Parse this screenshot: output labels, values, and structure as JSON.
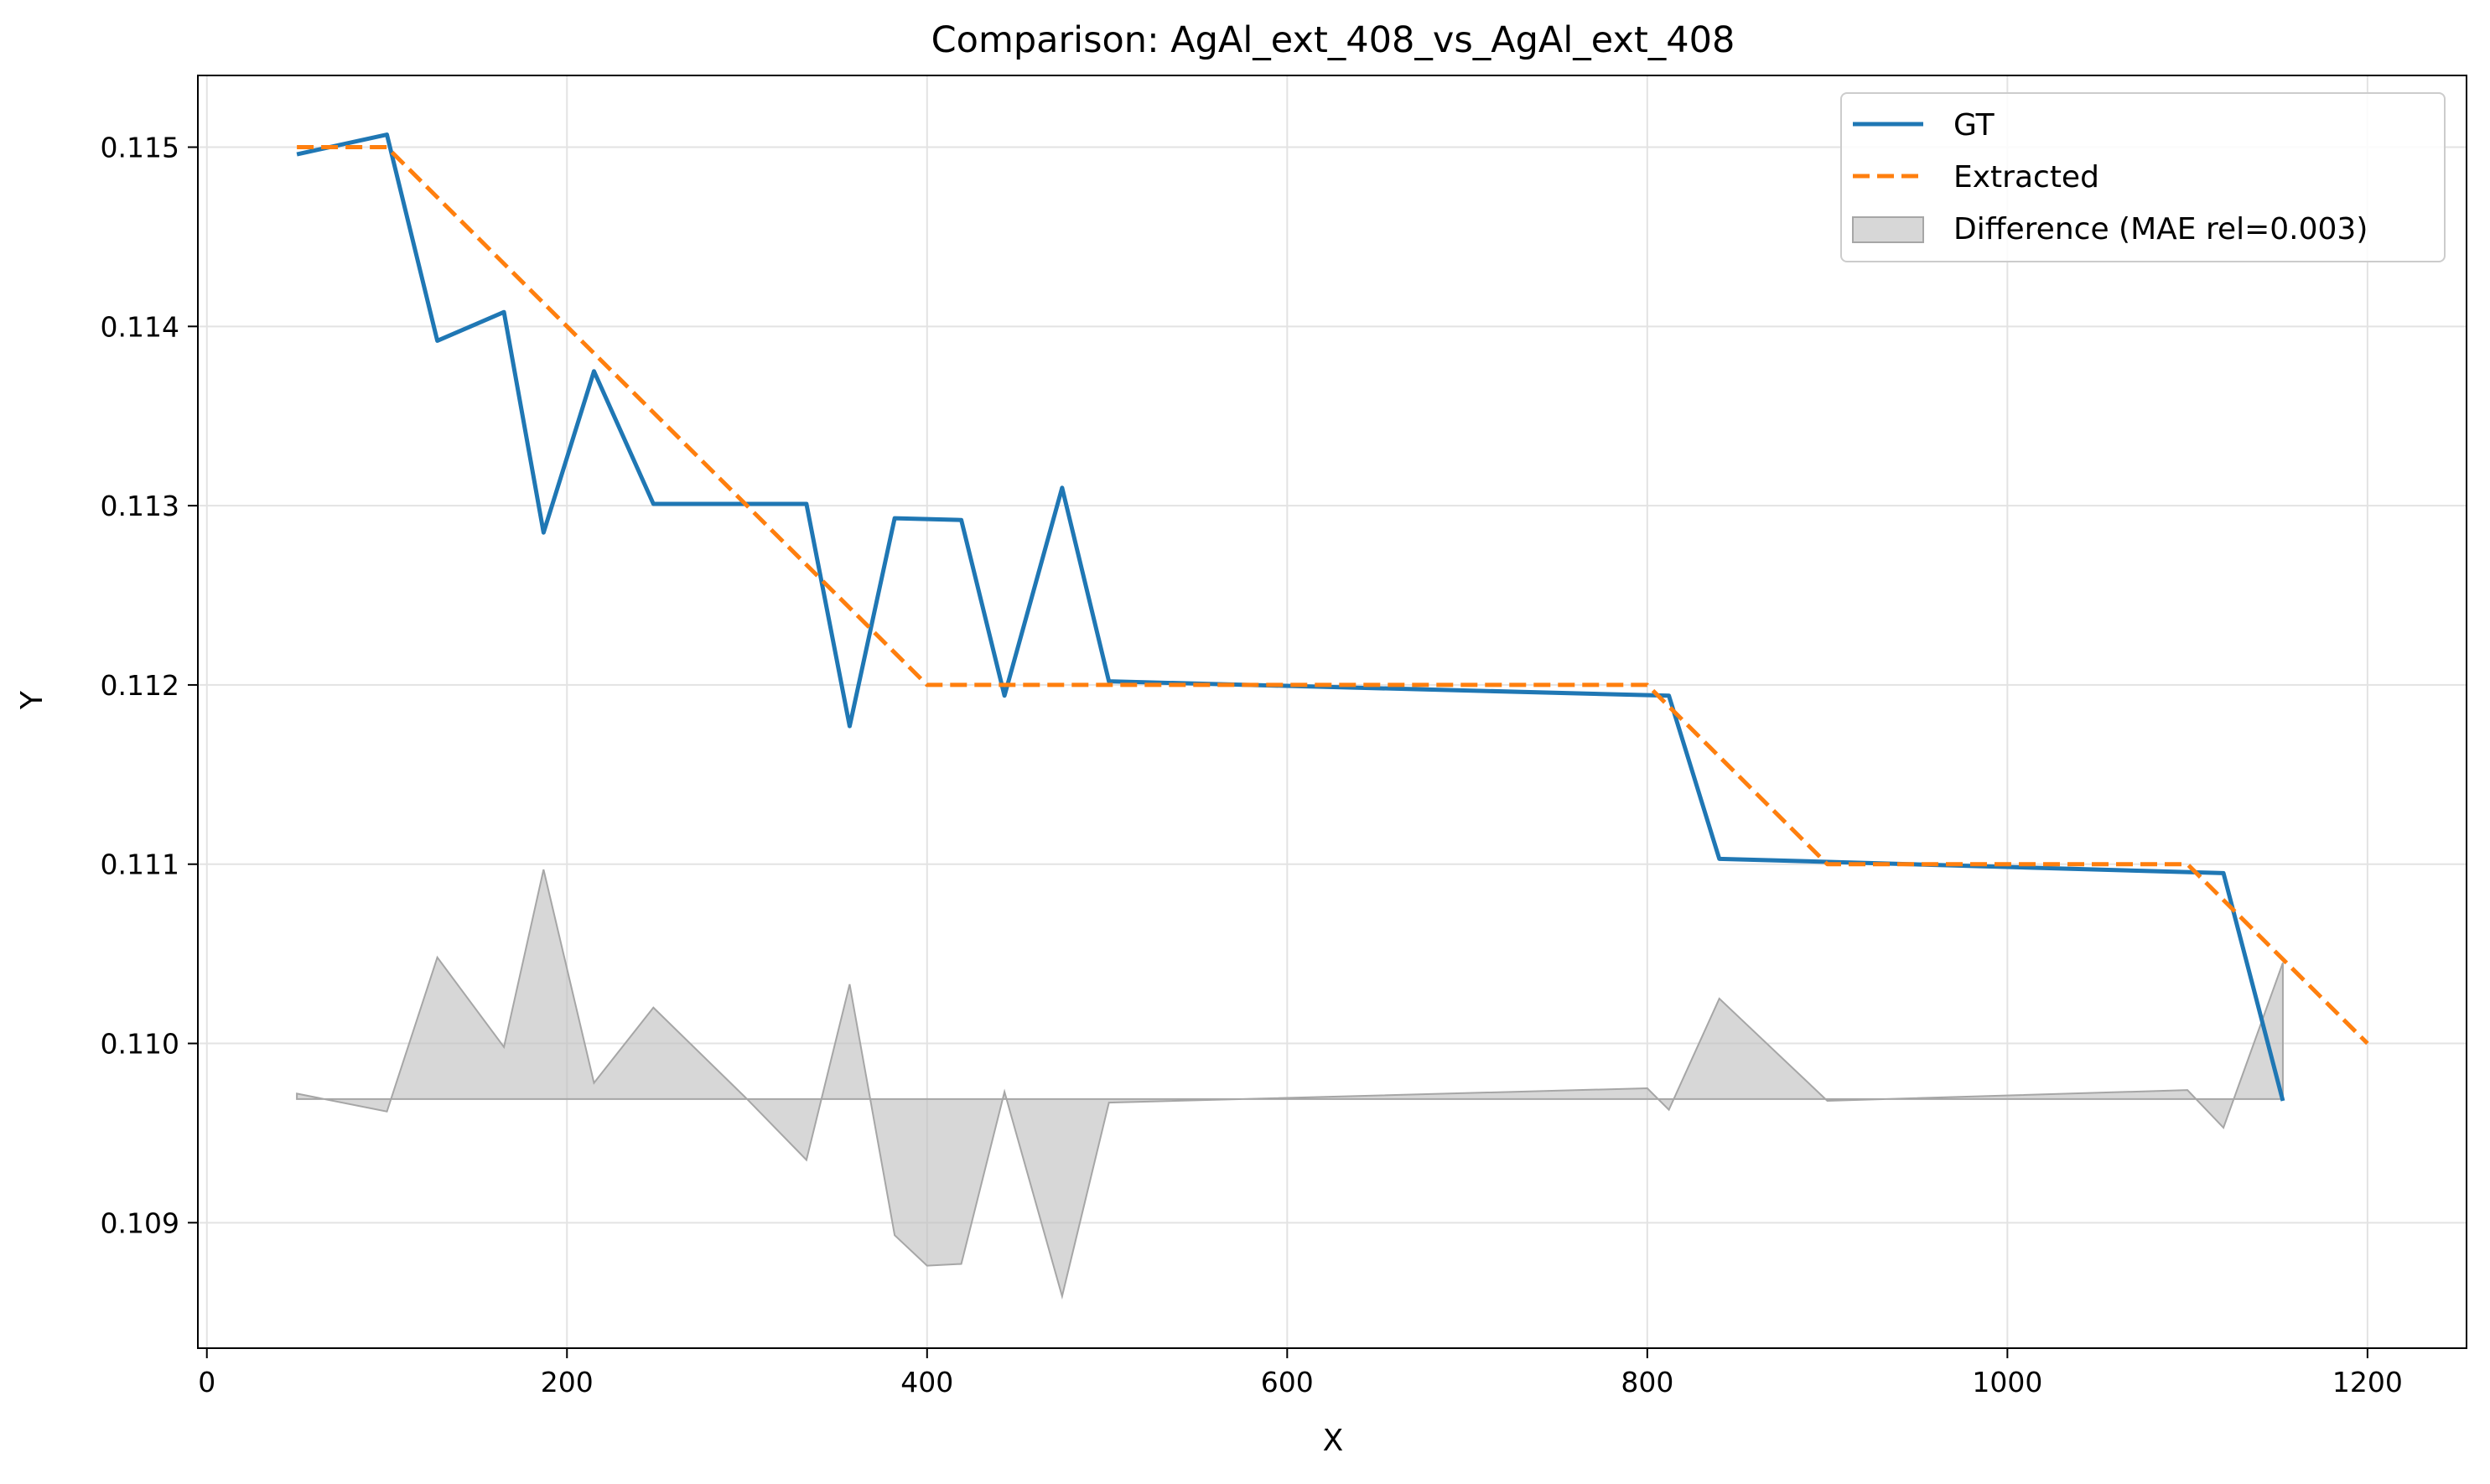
{
  "chart_data": {
    "type": "line",
    "title": "Comparison: AgAl_ext_408_vs_AgAl_ext_408",
    "xlabel": "X",
    "ylabel": "Y",
    "xlim": [
      -5,
      1255
    ],
    "ylim": [
      0.1083,
      0.1154
    ],
    "xticks": [
      0,
      200,
      400,
      600,
      800,
      1000,
      1200
    ],
    "yticks": [
      0.109,
      0.11,
      0.111,
      0.112,
      0.113,
      0.114,
      0.115
    ],
    "xtick_labels": [
      "0",
      "200",
      "400",
      "600",
      "800",
      "1000",
      "1200"
    ],
    "ytick_labels": [
      "0.109",
      "0.110",
      "0.111",
      "0.112",
      "0.113",
      "0.114",
      "0.115"
    ],
    "grid": true,
    "legend_position": "top-right",
    "series": [
      {
        "name": "GT",
        "color": "#1f77b4",
        "style": "solid",
        "x": [
          50,
          100,
          128,
          165,
          187,
          215,
          248,
          333,
          357,
          382,
          419,
          443,
          475,
          501,
          812,
          840,
          1120,
          1153
        ],
        "y": [
          0.11496,
          0.11507,
          0.11392,
          0.11408,
          0.11285,
          0.11375,
          0.11301,
          0.11301,
          0.11177,
          0.11293,
          0.11292,
          0.11194,
          0.1131,
          0.11202,
          0.11194,
          0.11103,
          0.11095,
          0.10968
        ]
      },
      {
        "name": "Extracted",
        "color": "#ff7f0e",
        "style": "dashed",
        "x": [
          50,
          100,
          400,
          800,
          900,
          1100,
          1200
        ],
        "y": [
          0.115,
          0.115,
          0.112,
          0.112,
          0.111,
          0.111,
          0.11
        ]
      },
      {
        "name": "Difference (MAE rel=0.003)",
        "color": "#bfbfbf",
        "style": "fill",
        "baseline": 0.10969,
        "x": [
          50,
          100,
          128,
          165,
          187,
          215,
          248,
          300,
          333,
          357,
          382,
          400,
          419,
          443,
          475,
          501,
          800,
          812,
          840,
          900,
          1100,
          1120,
          1153
        ],
        "y": [
          0.10972,
          0.10962,
          0.11048,
          0.10998,
          0.11097,
          0.10978,
          0.1102,
          0.10969,
          0.10935,
          0.11033,
          0.10893,
          0.10876,
          0.10877,
          0.10973,
          0.10859,
          0.10967,
          0.10975,
          0.10963,
          0.11025,
          0.10968,
          0.10974,
          0.10953,
          0.11045
        ]
      }
    ]
  }
}
